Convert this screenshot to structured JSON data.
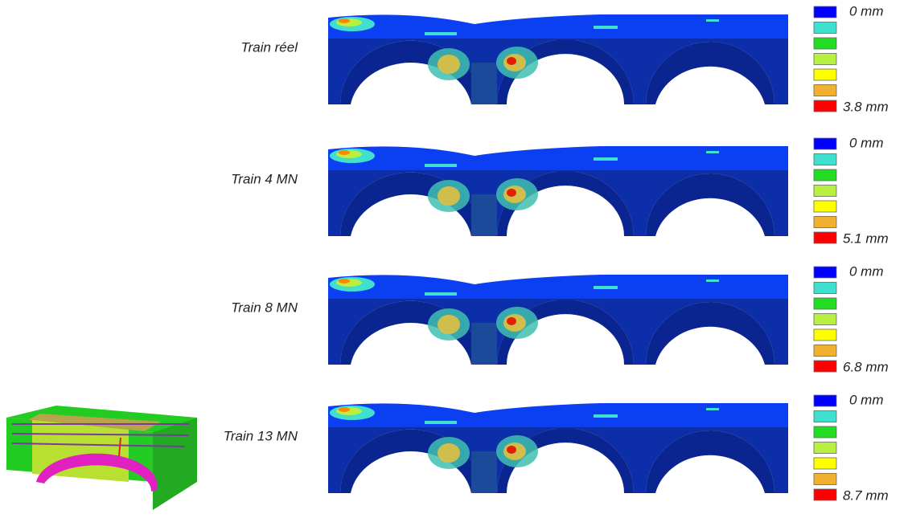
{
  "rows": [
    {
      "label": "Train réel",
      "legend_min": "0 mm",
      "legend_max": "3.8 mm"
    },
    {
      "label": "Train 4 MN",
      "legend_min": "0 mm",
      "legend_max": "5.1 mm"
    },
    {
      "label": "Train 8 MN",
      "legend_min": "0 mm",
      "legend_max": "6.8 mm"
    },
    {
      "label": "Train 13 MN",
      "legend_min": "0 mm",
      "legend_max": "8.7 mm"
    }
  ]
}
